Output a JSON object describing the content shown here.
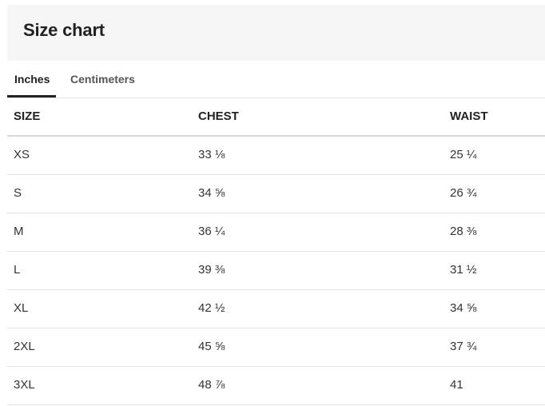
{
  "header": {
    "title": "Size chart"
  },
  "tabs": [
    {
      "label": "Inches",
      "active": true
    },
    {
      "label": "Centimeters",
      "active": false
    }
  ],
  "table": {
    "columns": [
      "SIZE",
      "CHEST",
      "WAIST"
    ],
    "rows": [
      [
        "XS",
        "33 ⅛",
        "25 ¼"
      ],
      [
        "S",
        "34 ⅝",
        "26 ¾"
      ],
      [
        "M",
        "36 ¼",
        "28 ⅜"
      ],
      [
        "L",
        "39 ⅜",
        "31 ½"
      ],
      [
        "XL",
        "42 ½",
        "34 ⅝"
      ],
      [
        "2XL",
        "45 ⅝",
        "37 ¾"
      ],
      [
        "3XL",
        "48 ⅞",
        "41"
      ]
    ]
  },
  "colors": {
    "header_bg": "#f6f6f6",
    "text": "#222222",
    "divider": "#e2e2e2"
  }
}
